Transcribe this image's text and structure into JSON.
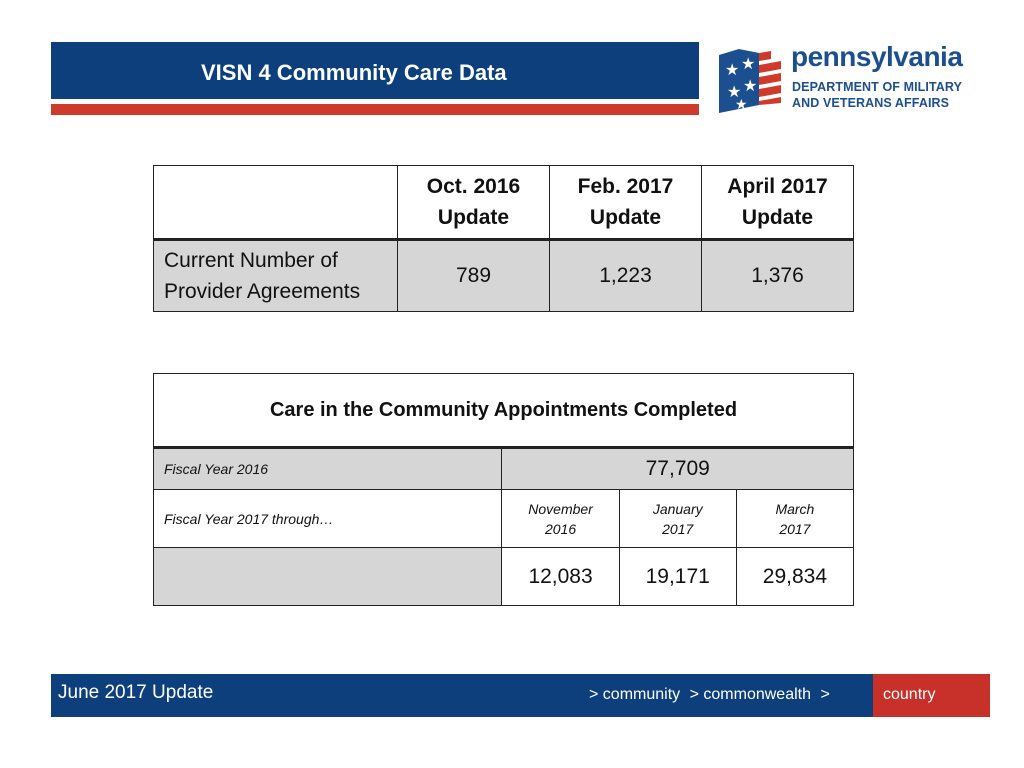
{
  "header": {
    "title": "VISN 4 Community Care Data"
  },
  "logo": {
    "wordmark": "pennsylvania",
    "line1": "DEPARTMENT OF MILITARY",
    "line2": "AND VETERANS AFFAIRS",
    "colors": {
      "blue": "#1b4f8f",
      "red": "#cf3b2a"
    }
  },
  "provider_table": {
    "columns": [
      {
        "line1": "Oct. 2016",
        "line2": "Update"
      },
      {
        "line1": "Feb. 2017",
        "line2": "Update"
      },
      {
        "line1": "April 2017",
        "line2": "Update"
      }
    ],
    "row_label_line1": "Current Number of",
    "row_label_line2": "Provider Agreements",
    "values": [
      "789",
      "1,223",
      "1,376"
    ]
  },
  "appointments_table": {
    "title": "Care in the Community Appointments Completed",
    "fy2016_label": "Fiscal Year 2016",
    "fy2016_value": "77,709",
    "fy2017_label": "Fiscal Year 2017 through…",
    "months": [
      {
        "month": "November",
        "year": "2016"
      },
      {
        "month": "January",
        "year": "2017"
      },
      {
        "month": "March",
        "year": "2017"
      }
    ],
    "values": [
      "12,083",
      "19,171",
      "29,834"
    ]
  },
  "footer": {
    "left": "June 2017 Update",
    "nav": [
      "> community",
      "> commonwealth",
      ">"
    ],
    "highlight": "country",
    "colors": {
      "bar": "#0d3f7c",
      "highlight": "#c8302a"
    }
  }
}
